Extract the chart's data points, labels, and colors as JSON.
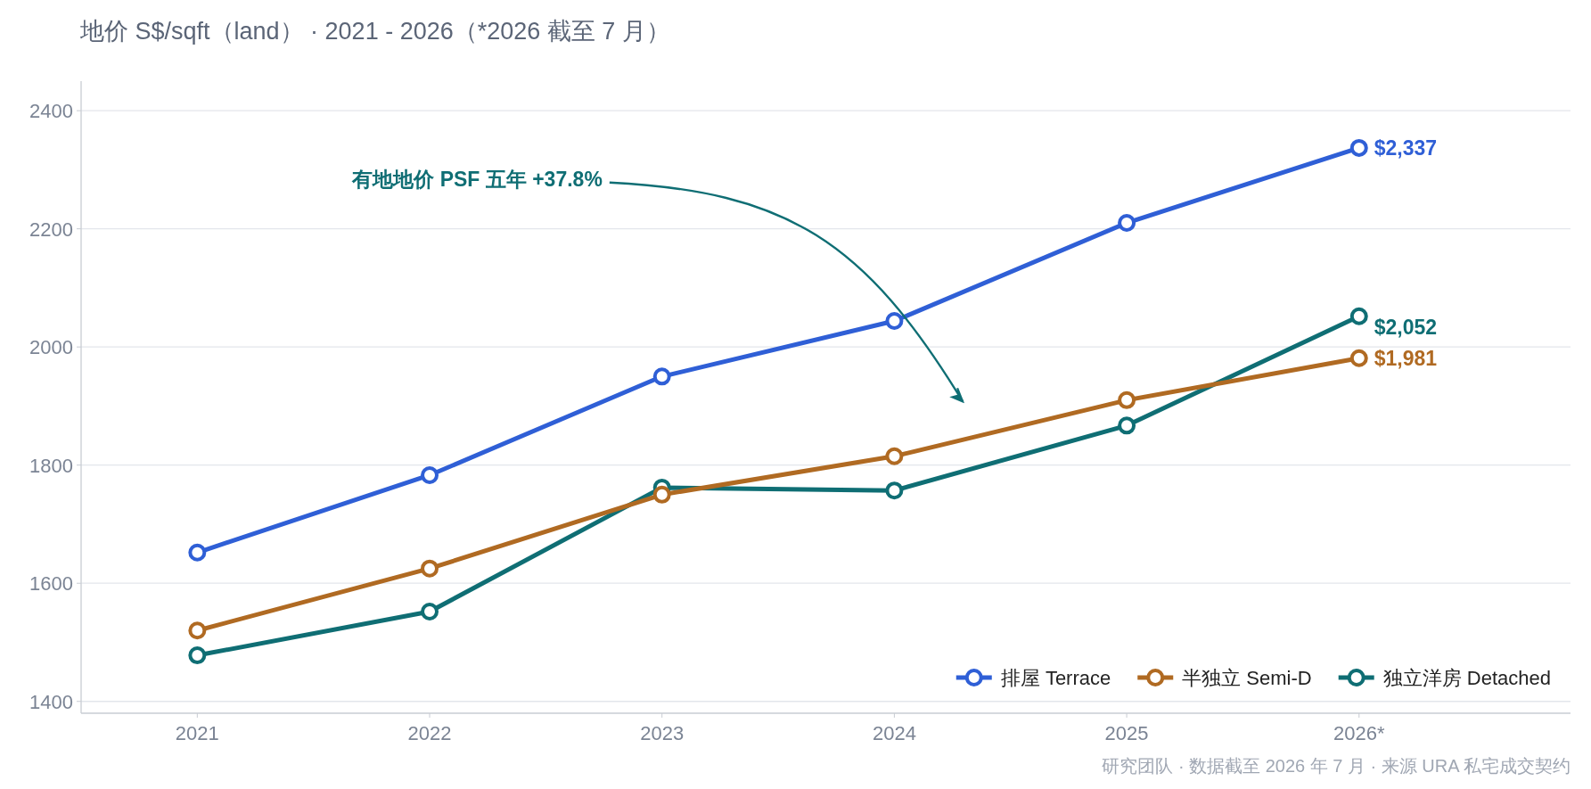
{
  "chart_data": {
    "type": "line",
    "title": "地价 S$/sqft（land） · 2021 - 2026（*2026 截至 7 月）",
    "categories": [
      "2021",
      "2022",
      "2023",
      "2024",
      "2025",
      "2026*"
    ],
    "series": [
      {
        "name": "排屋 Terrace",
        "color": "#2f5fd6",
        "values": [
          1652,
          1783,
          1950,
          2044,
          2210,
          2337
        ],
        "value_labels": [
          null,
          null,
          null,
          null,
          null,
          "$2,337"
        ]
      },
      {
        "name": "半独立 Semi-D",
        "color": "#b06a22",
        "values": [
          1520,
          1625,
          1750,
          1815,
          1910,
          1981
        ],
        "value_labels": [
          null,
          null,
          null,
          null,
          null,
          "$1,981"
        ]
      },
      {
        "name": "独立洋房 Detached",
        "color": "#0f6e74",
        "values": [
          1478,
          1552,
          1762,
          1757,
          1867,
          2052
        ],
        "value_labels": [
          null,
          null,
          null,
          null,
          null,
          "$2,052"
        ]
      }
    ],
    "ylim": [
      1380,
      2450
    ],
    "yticks": [
      1400,
      1600,
      1800,
      2000,
      2200,
      2400
    ],
    "grid": "y",
    "legend": "bottom right",
    "marker": "circle",
    "line_style": "solid",
    "annotations": [
      "有地地价 PSF 五年 +37.8%",
      "研究团队 · 数据截至 2026 年 7 月 · 来源 URA 私宅成交契约"
    ]
  }
}
